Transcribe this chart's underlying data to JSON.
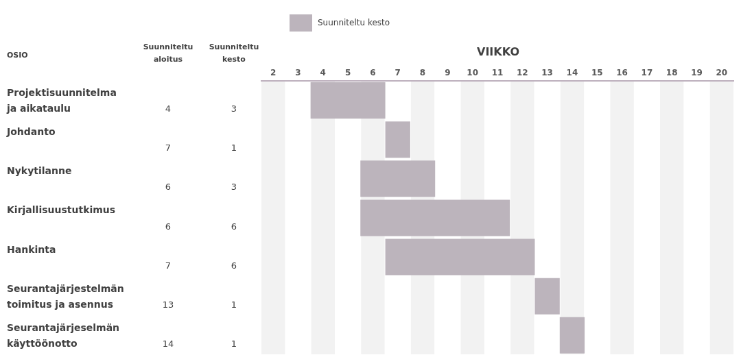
{
  "chart_data": [
    {
      "type": "other",
      "ylabel": "OSIO",
      "data_labels": true,
      "categories": [
        "Projektisuunnitelma ja aikataulu",
        "Johdanto",
        "Nykytilanne",
        "Kirjallisuustutkimus",
        "Hankinta",
        "Seurantajärjestelmän toimitus ja asennus",
        "Seurantajärjeselmän käyttöönotto"
      ],
      "series": [
        {
          "name": "Suunniteltu aloitus",
          "values": [
            4,
            7,
            6,
            6,
            7,
            13,
            14
          ]
        },
        {
          "name": "Suunniteltu kesto",
          "values": [
            3,
            1,
            3,
            6,
            6,
            1,
            1
          ]
        }
      ]
    },
    {
      "type": "bar",
      "orientation": "horizontal",
      "xlabel": "VIIKKO",
      "tick_labels": "x",
      "categories": [
        null,
        null,
        null,
        null,
        null,
        null,
        null
      ],
      "series": [
        {
          "name": "Suunniteltu kesto",
          "color": "#bcb4bc",
          "base": [
            4,
            7,
            6,
            6,
            7,
            13,
            14
          ],
          "values": [
            3,
            1,
            3,
            6,
            6,
            1,
            1
          ]
        }
      ],
      "xlim": [
        2,
        21
      ],
      "xticks": [
        {
          "value": 2.5,
          "label": "2"
        },
        {
          "value": 3.5,
          "label": "3"
        },
        {
          "value": 4.5,
          "label": "4"
        },
        {
          "value": 5.5,
          "label": "5"
        },
        {
          "value": 6.5,
          "label": "6"
        },
        {
          "value": 7.5,
          "label": "7"
        },
        {
          "value": 8.5,
          "label": "8"
        },
        {
          "value": 9.5,
          "label": "9"
        },
        {
          "value": 10.5,
          "label": "10"
        },
        {
          "value": 11.5,
          "label": "11"
        },
        {
          "value": 12.5,
          "label": "12"
        },
        {
          "value": 13.5,
          "label": "13"
        },
        {
          "value": 14.5,
          "label": "14"
        },
        {
          "value": 15.5,
          "label": "15"
        },
        {
          "value": 16.5,
          "label": "16"
        },
        {
          "value": 17.5,
          "label": "17"
        },
        {
          "value": 18.5,
          "label": "18"
        },
        {
          "value": 19.5,
          "label": "19"
        },
        {
          "value": 20.5,
          "label": "20"
        }
      ],
      "bands": [
        {
          "axis": "x",
          "from": 2,
          "to": 3,
          "color": "#f2f2f2"
        },
        {
          "axis": "x",
          "from": 4,
          "to": 5,
          "color": "#f2f2f2"
        },
        {
          "axis": "x",
          "from": 6,
          "to": 7,
          "color": "#f2f2f2"
        },
        {
          "axis": "x",
          "from": 8,
          "to": 9,
          "color": "#f2f2f2"
        },
        {
          "axis": "x",
          "from": 10,
          "to": 11,
          "color": "#f2f2f2"
        },
        {
          "axis": "x",
          "from": 12,
          "to": 13,
          "color": "#f2f2f2"
        },
        {
          "axis": "x",
          "from": 14,
          "to": 15,
          "color": "#f2f2f2"
        },
        {
          "axis": "x",
          "from": 16,
          "to": 17,
          "color": "#f2f2f2"
        },
        {
          "axis": "x",
          "from": 18,
          "to": 19,
          "color": "#f2f2f2"
        },
        {
          "axis": "x",
          "from": 20,
          "to": 21,
          "color": "#f2f2f2"
        }
      ],
      "legend": "top"
    }
  ]
}
